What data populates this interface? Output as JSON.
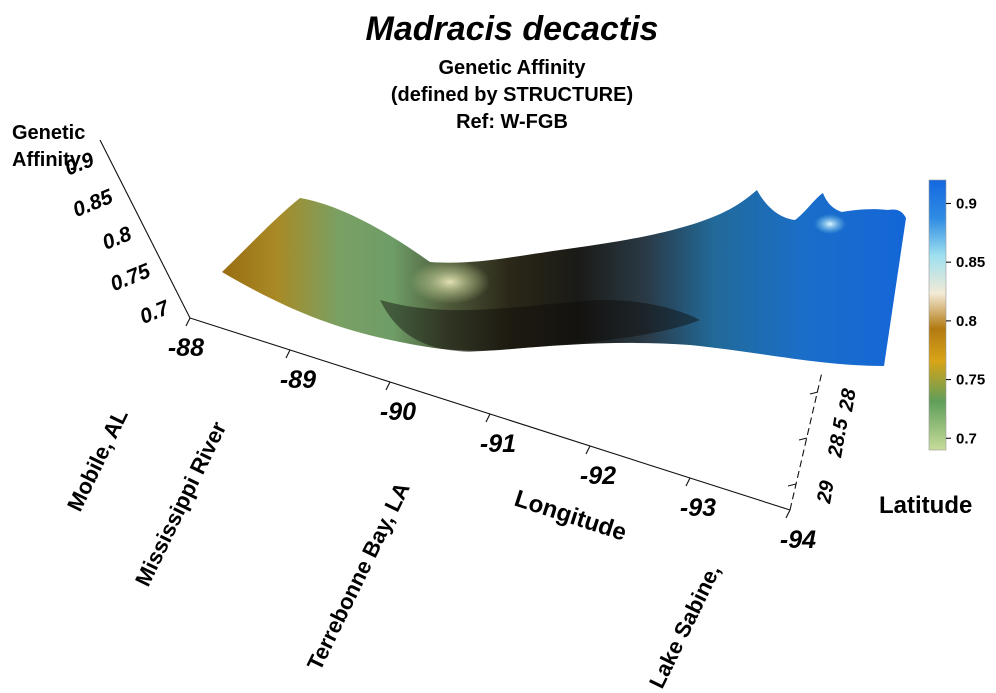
{
  "chart_data": {
    "type": "surface",
    "title": "Madracis decactis",
    "subtitle_lines": [
      "Genetic Affinity",
      "(defined by STRUCTURE)",
      "Ref:  W-FGB"
    ],
    "zlabel_lines": [
      "Genetic",
      "Affinity"
    ],
    "xlabel": "Longitude",
    "ylabel": "Latitude",
    "z_ticks": [
      "0.9",
      "0.85",
      "0.8",
      "0.75",
      "0.7"
    ],
    "x_ticks": [
      "-88",
      "-89",
      "-90",
      "-91",
      "-92",
      "-93",
      "-94"
    ],
    "y_ticks": [
      "28",
      "28.5",
      "29"
    ],
    "sites": [
      "Mobile, AL",
      "Mississippi River",
      "Terrebonne Bay, LA",
      "Lake Sabine,"
    ],
    "colorbar_ticks": [
      "0.9",
      "0.85",
      "0.8",
      "0.75",
      "0.7"
    ],
    "xlim": [
      -88,
      -94
    ],
    "ylim": [
      28,
      29
    ],
    "zlim": [
      0.7,
      0.92
    ],
    "profile": {
      "longitude": [
        -88.0,
        -88.5,
        -89.0,
        -89.5,
        -90.0,
        -90.5,
        -91.0,
        -91.5,
        -92.0,
        -92.5,
        -93.0,
        -93.5,
        -94.0
      ],
      "affinity": [
        0.78,
        0.74,
        0.71,
        0.7,
        0.76,
        0.8,
        0.81,
        0.8,
        0.81,
        0.86,
        0.9,
        0.91,
        0.92
      ]
    },
    "colorscale": [
      "#c8dc9a",
      "#5f9e5a",
      "#d9a417",
      "#b27a12",
      "#f3ead6",
      "#9ee0f0",
      "#2e8be3",
      "#1468e0"
    ]
  }
}
